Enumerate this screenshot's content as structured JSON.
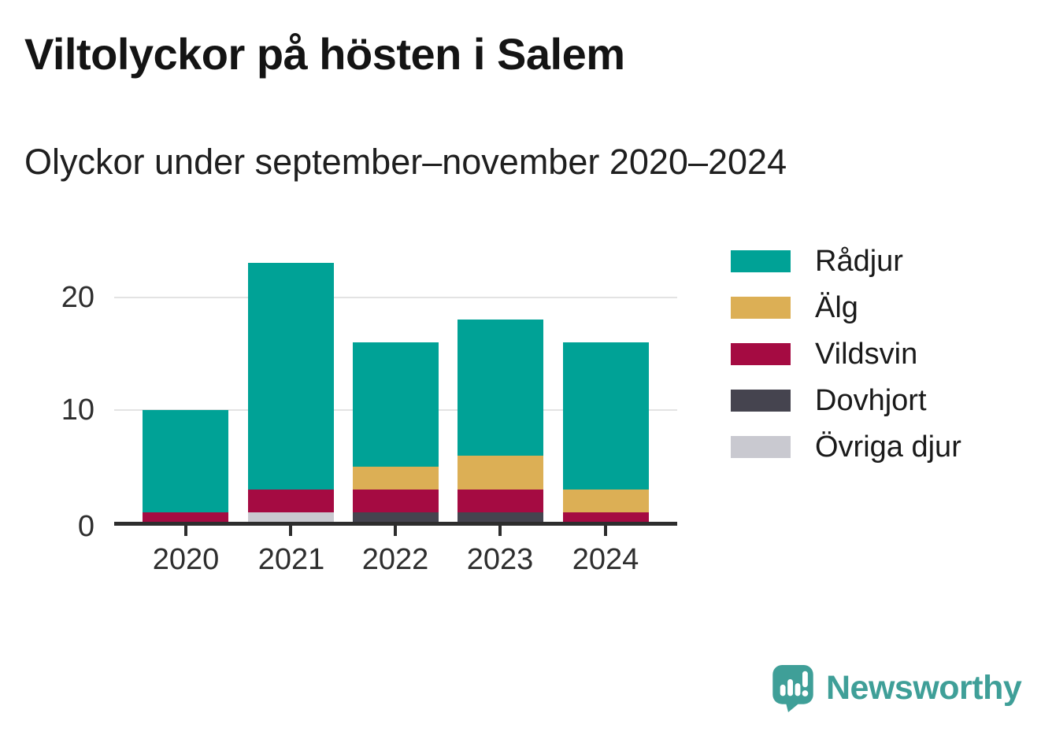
{
  "header": {
    "title": "Viltolyckor på hösten i Salem",
    "subtitle": "Olyckor under september–november 2020–2024"
  },
  "chart_data": {
    "type": "bar",
    "stacked": true,
    "title": "Viltolyckor på hösten i Salem",
    "subtitle": "Olyckor under september–november 2020–2024",
    "categories": [
      "2020",
      "2021",
      "2022",
      "2023",
      "2024"
    ],
    "series": [
      {
        "name": "Rådjur",
        "color": "#00a296",
        "values": [
          9,
          20,
          11,
          12,
          13
        ]
      },
      {
        "name": "Älg",
        "color": "#dcaf55",
        "values": [
          0,
          0,
          2,
          3,
          2
        ]
      },
      {
        "name": "Vildsvin",
        "color": "#a50b42",
        "values": [
          1,
          2,
          2,
          2,
          1
        ]
      },
      {
        "name": "Dovhjort",
        "color": "#45444f",
        "values": [
          0,
          0,
          1,
          1,
          0
        ]
      },
      {
        "name": "Övriga djur",
        "color": "#c9c9d0",
        "values": [
          0,
          1,
          0,
          0,
          0
        ]
      }
    ],
    "stack_order_bottom_to_top": [
      "Övriga djur",
      "Dovhjort",
      "Vildsvin",
      "Älg",
      "Rådjur"
    ],
    "totals": [
      10,
      23,
      16,
      18,
      16
    ],
    "yticks": [
      "0",
      "10",
      "20"
    ],
    "ylim": [
      0,
      23.5
    ],
    "grid": "horizontal",
    "legend_position": "right"
  },
  "footer": {
    "brand": "Newsworthy"
  },
  "colors": {
    "accent_teal": "#00a296",
    "logo_teal": "#3f9f98",
    "axis": "#2d2d2d",
    "gridline": "#e3e3e3"
  }
}
